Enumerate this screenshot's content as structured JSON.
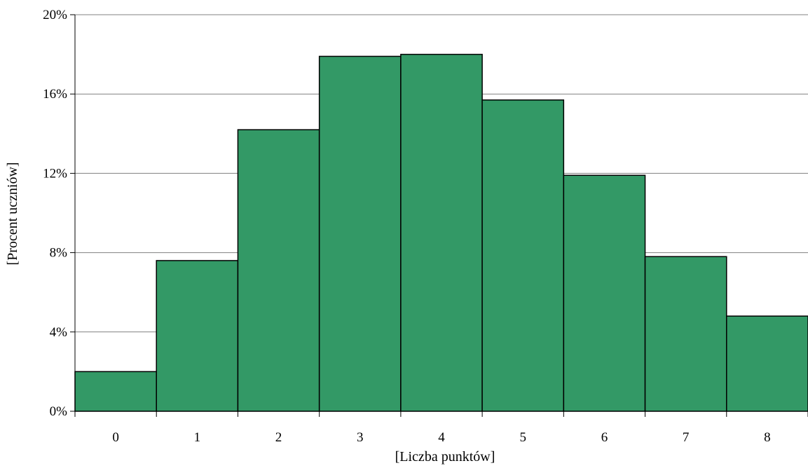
{
  "chart_data": {
    "type": "bar",
    "title": "",
    "xlabel": "[Liczba punktów]",
    "ylabel": "[Procent uczniów]",
    "categories": [
      "0",
      "1",
      "2",
      "3",
      "4",
      "5",
      "6",
      "7",
      "8"
    ],
    "values": [
      2.0,
      7.6,
      14.2,
      17.9,
      18.0,
      15.7,
      11.9,
      7.8,
      4.8
    ],
    "ylim": [
      0,
      20
    ],
    "y_ticks": [
      0,
      4,
      8,
      12,
      16,
      20
    ],
    "y_tick_labels": [
      "0%",
      "4%",
      "8%",
      "12%",
      "16%",
      "20%"
    ],
    "grid": true,
    "legend": "none",
    "colors": {
      "bar_fill": "#339966",
      "bar_stroke": "#000000",
      "grid": "#808080",
      "axis": "#000000"
    }
  }
}
